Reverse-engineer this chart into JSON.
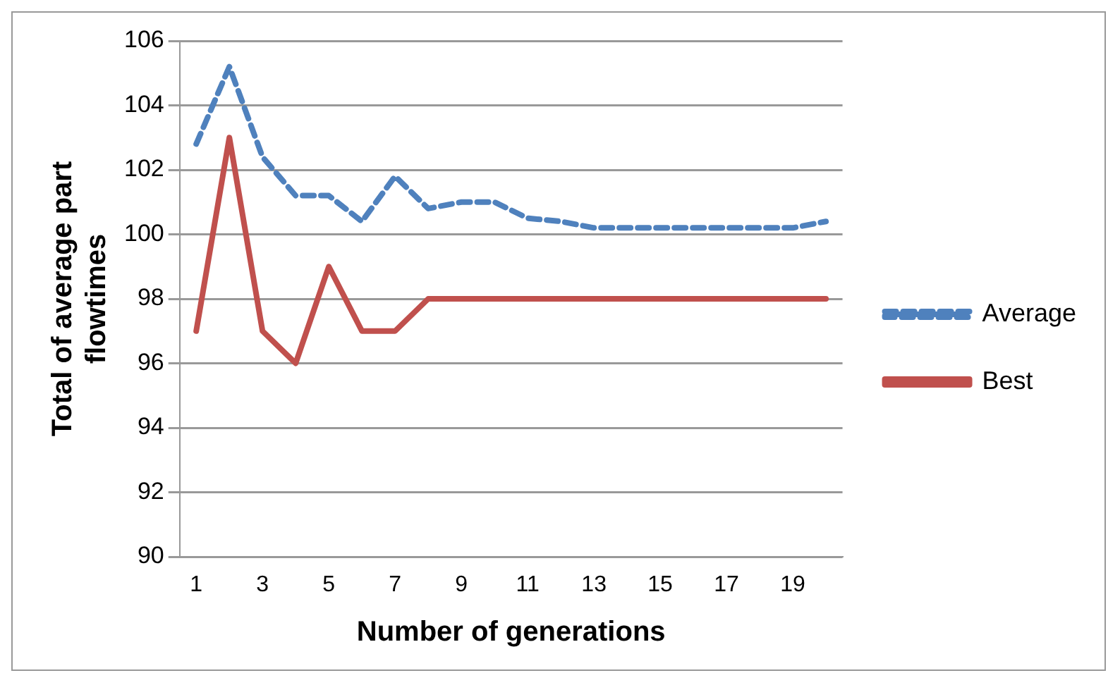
{
  "chart_data": {
    "type": "line",
    "xlabel": "Number of generations",
    "ylabel": "Total of average part flowtimes",
    "categories": [
      "1",
      null,
      "3",
      null,
      "5",
      null,
      "7",
      null,
      "9",
      null,
      "11",
      null,
      "13",
      null,
      "15",
      null,
      "17",
      null,
      "19",
      null
    ],
    "series": [
      {
        "name": "Average",
        "color": "#4f81bd",
        "line_style": "dashed",
        "values": [
          102.8,
          105.2,
          102.4,
          101.2,
          101.2,
          100.4,
          101.8,
          100.8,
          101,
          101,
          100.5,
          100.4,
          100.2,
          100.2,
          100.2,
          100.2,
          100.2,
          100.2,
          100.2,
          100.4
        ]
      },
      {
        "name": "Best",
        "color": "#c0504d",
        "line_style": "solid",
        "values": [
          97,
          103,
          97,
          96,
          99,
          97,
          97,
          98,
          98,
          98,
          98,
          98,
          98,
          98,
          98,
          98,
          98,
          98,
          98,
          98
        ]
      }
    ],
    "ylim": [
      90,
      106
    ],
    "yticks": [
      90,
      92,
      94,
      96,
      98,
      100,
      102,
      104,
      106
    ],
    "grid": "y",
    "legend": "right",
    "marker": "none"
  }
}
